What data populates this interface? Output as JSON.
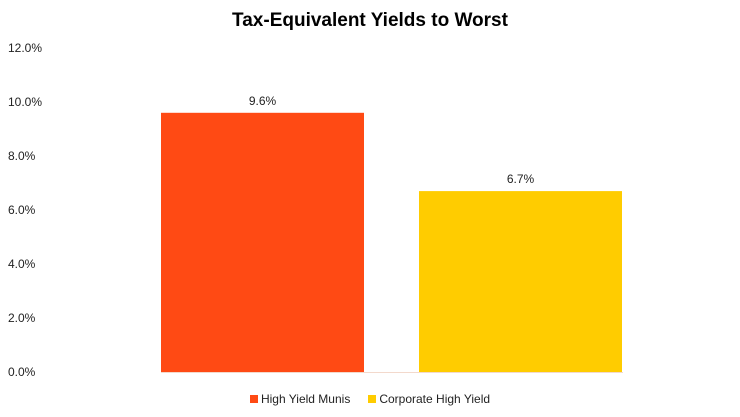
{
  "chart_data": {
    "type": "bar",
    "title": "Tax-Equivalent Yields to Worst",
    "xlabel": "",
    "ylabel": "",
    "ylim": [
      0,
      12
    ],
    "yticks": [
      0,
      2,
      4,
      6,
      8,
      10,
      12
    ],
    "ytick_labels": [
      "0.0%",
      "2.0%",
      "4.0%",
      "6.0%",
      "8.0%",
      "10.0%",
      "12.0%"
    ],
    "grid": false,
    "legend_placement": "bottom",
    "series": [
      {
        "name": "High Yield Munis",
        "values": [
          9.6
        ],
        "label": "9.6%",
        "color": "#FF4A14"
      },
      {
        "name": "Corporate High Yield",
        "values": [
          6.7
        ],
        "label": "6.7%",
        "color": "#FFCC00"
      }
    ]
  }
}
